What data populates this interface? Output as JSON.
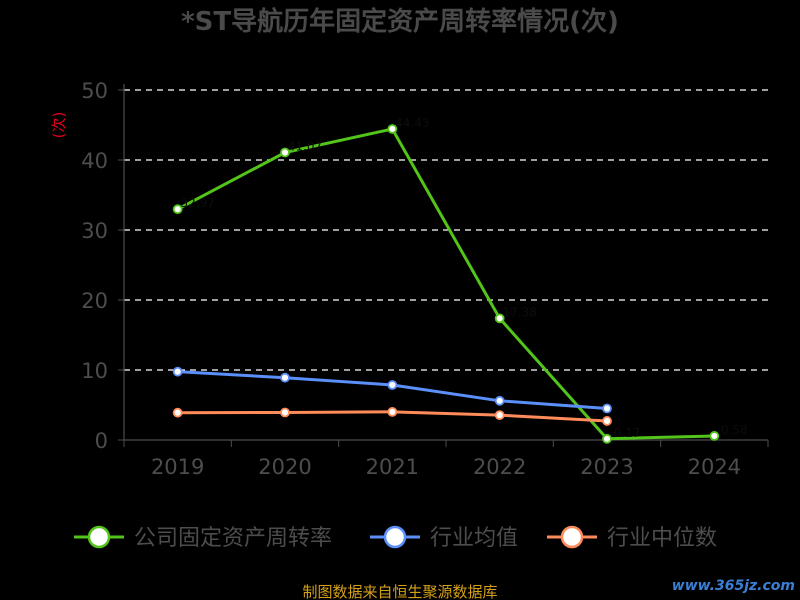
{
  "chart_data": {
    "type": "line",
    "title": "*ST导航历年固定资产周转率情况(次)",
    "ylabel": "(次)",
    "xlabel": "",
    "categories": [
      "2019",
      "2020",
      "2021",
      "2022",
      "2023",
      "2024"
    ],
    "ylim": [
      0,
      50
    ],
    "yticks": [
      0,
      10,
      20,
      30,
      40,
      50
    ],
    "grid": true,
    "legend_position": "bottom",
    "series": [
      {
        "name": "公司固定资产周转率",
        "color": "#52c41a",
        "values": [
          32.97,
          41.07,
          44.43,
          17.38,
          0.17,
          0.58
        ],
        "point_labels": [
          "32.97",
          "41.07",
          "44.43",
          "17.38",
          "0.17",
          "0.58"
        ]
      },
      {
        "name": "行业均值",
        "color": "#5b8ff9",
        "values": [
          9.76,
          8.9,
          7.86,
          5.6,
          4.5,
          null
        ]
      },
      {
        "name": "行业中位数",
        "color": "#ff8c5a",
        "values": [
          3.9,
          3.93,
          4.02,
          3.55,
          2.72,
          null
        ]
      }
    ]
  },
  "footer": {
    "source": "制图数据来自恒生聚源数据库",
    "watermark": "www.365jz.com"
  },
  "colors": {
    "background": "#000000",
    "title": "#4a4a4a",
    "axis_text": "#4d4d4d",
    "unit_label": "#e0001a",
    "grid": "#ffffff",
    "source_text": "#d4a017",
    "watermark": "#3a7fd5"
  }
}
